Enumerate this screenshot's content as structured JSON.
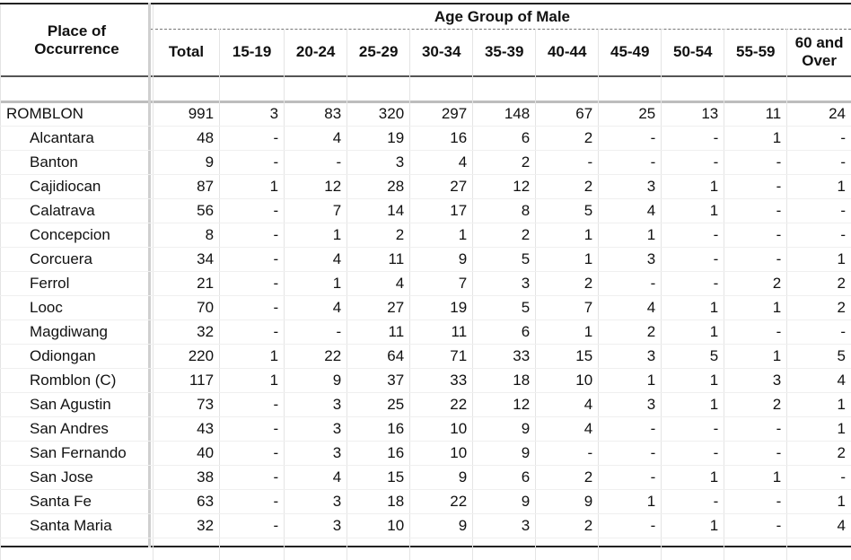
{
  "table": {
    "place_header": "Place of Occurrence",
    "place_header_line1": "Place of",
    "place_header_line2": "Occurrence",
    "group_header": "Age Group of Male",
    "columns": [
      "Total",
      "15-19",
      "20-24",
      "25-29",
      "30-34",
      "35-39",
      "40-44",
      "45-49",
      "50-54",
      "55-59",
      "60 and Over"
    ],
    "last_col_line1": "60 and",
    "last_col_line2": "Over",
    "province": {
      "name": "ROMBLON",
      "values": [
        "991",
        "3",
        "83",
        "320",
        "297",
        "148",
        "67",
        "25",
        "13",
        "11",
        "24"
      ]
    },
    "rows": [
      {
        "name": "Alcantara",
        "values": [
          "48",
          "-",
          "4",
          "19",
          "16",
          "6",
          "2",
          "-",
          "-",
          "1",
          "-"
        ]
      },
      {
        "name": "Banton",
        "values": [
          "9",
          "-",
          "-",
          "3",
          "4",
          "2",
          "-",
          "-",
          "-",
          "-",
          "-"
        ]
      },
      {
        "name": "Cajidiocan",
        "values": [
          "87",
          "1",
          "12",
          "28",
          "27",
          "12",
          "2",
          "3",
          "1",
          "-",
          "1"
        ]
      },
      {
        "name": "Calatrava",
        "values": [
          "56",
          "-",
          "7",
          "14",
          "17",
          "8",
          "5",
          "4",
          "1",
          "-",
          "-"
        ]
      },
      {
        "name": "Concepcion",
        "values": [
          "8",
          "-",
          "1",
          "2",
          "1",
          "2",
          "1",
          "1",
          "-",
          "-",
          "-"
        ]
      },
      {
        "name": "Corcuera",
        "values": [
          "34",
          "-",
          "4",
          "11",
          "9",
          "5",
          "1",
          "3",
          "-",
          "-",
          "1"
        ]
      },
      {
        "name": "Ferrol",
        "values": [
          "21",
          "-",
          "1",
          "4",
          "7",
          "3",
          "2",
          "-",
          "-",
          "2",
          "2"
        ]
      },
      {
        "name": "Looc",
        "values": [
          "70",
          "-",
          "4",
          "27",
          "19",
          "5",
          "7",
          "4",
          "1",
          "1",
          "2"
        ]
      },
      {
        "name": "Magdiwang",
        "values": [
          "32",
          "-",
          "-",
          "11",
          "11",
          "6",
          "1",
          "2",
          "1",
          "-",
          "-"
        ]
      },
      {
        "name": "Odiongan",
        "values": [
          "220",
          "1",
          "22",
          "64",
          "71",
          "33",
          "15",
          "3",
          "5",
          "1",
          "5"
        ]
      },
      {
        "name": "Romblon (C)",
        "values": [
          "117",
          "1",
          "9",
          "37",
          "33",
          "18",
          "10",
          "1",
          "1",
          "3",
          "4"
        ]
      },
      {
        "name": "San Agustin",
        "values": [
          "73",
          "-",
          "3",
          "25",
          "22",
          "12",
          "4",
          "3",
          "1",
          "2",
          "1"
        ]
      },
      {
        "name": "San Andres",
        "values": [
          "43",
          "-",
          "3",
          "16",
          "10",
          "9",
          "4",
          "-",
          "-",
          "-",
          "1"
        ]
      },
      {
        "name": "San Fernando",
        "values": [
          "40",
          "-",
          "3",
          "16",
          "10",
          "9",
          "-",
          "-",
          "-",
          "-",
          "2"
        ]
      },
      {
        "name": "San Jose",
        "values": [
          "38",
          "-",
          "4",
          "15",
          "9",
          "6",
          "2",
          "-",
          "1",
          "1",
          "-"
        ]
      },
      {
        "name": "Santa Fe",
        "values": [
          "63",
          "-",
          "3",
          "18",
          "22",
          "9",
          "9",
          "1",
          "-",
          "-",
          "1"
        ]
      },
      {
        "name": "Santa Maria",
        "values": [
          "32",
          "-",
          "3",
          "10",
          "9",
          "3",
          "2",
          "-",
          "1",
          "-",
          "4"
        ]
      }
    ]
  }
}
